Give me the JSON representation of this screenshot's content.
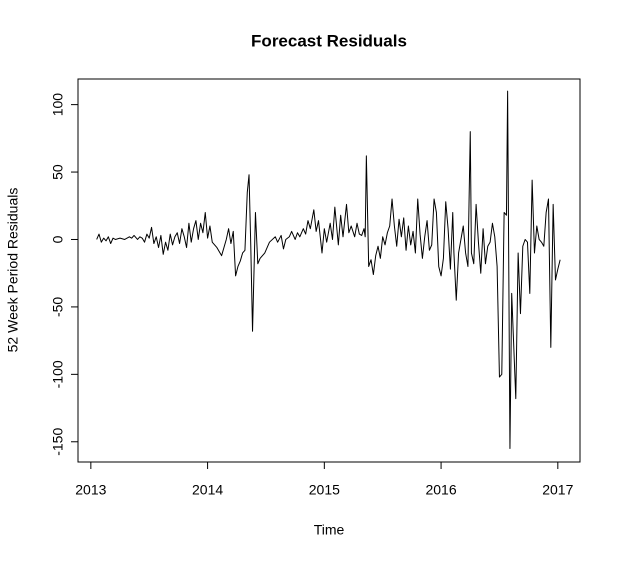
{
  "chart_data": {
    "type": "line",
    "title": "Forecast Residuals",
    "x_label": "Time",
    "y_label": "52 Week Period Residuals",
    "color": "#000000",
    "xlim": [
      2012.89,
      2017.19
    ],
    "xticks": [
      2013,
      2014,
      2015,
      2016,
      2017
    ],
    "ylim": [
      -165,
      119
    ],
    "yticks": [
      -150,
      -100,
      -50,
      0,
      50,
      100
    ],
    "x": [
      2013.05,
      2013.07,
      2013.09,
      2013.11,
      2013.13,
      2013.15,
      2013.17,
      2013.19,
      2013.21,
      2013.25,
      2013.29,
      2013.33,
      2013.35,
      2013.37,
      2013.4,
      2013.42,
      2013.44,
      2013.46,
      2013.48,
      2013.5,
      2013.52,
      2013.54,
      2013.56,
      2013.58,
      2013.6,
      2013.62,
      2013.64,
      2013.66,
      2013.68,
      2013.7,
      2013.72,
      2013.74,
      2013.76,
      2013.78,
      2013.8,
      2013.82,
      2013.84,
      2013.86,
      2013.88,
      2013.9,
      2013.92,
      2013.94,
      2013.96,
      2013.98,
      2014.0,
      2014.02,
      2014.04,
      2014.08,
      2014.12,
      2014.16,
      2014.18,
      2014.2,
      2014.22,
      2014.24,
      2014.26,
      2014.28,
      2014.3,
      2014.32,
      2014.34,
      2014.355,
      2014.37,
      2014.385,
      2014.41,
      2014.43,
      2014.45,
      2014.49,
      2014.53,
      2014.58,
      2014.6,
      2014.63,
      2014.65,
      2014.67,
      2014.7,
      2014.72,
      2014.75,
      2014.77,
      2014.79,
      2014.82,
      2014.84,
      2014.86,
      2014.88,
      2014.91,
      2014.93,
      2014.95,
      2014.98,
      2015.0,
      2015.02,
      2015.05,
      2015.07,
      2015.09,
      2015.12,
      2015.14,
      2015.16,
      2015.19,
      2015.21,
      2015.23,
      2015.26,
      2015.28,
      2015.3,
      2015.32,
      2015.34,
      2015.35,
      2015.36,
      2015.38,
      2015.4,
      2015.42,
      2015.44,
      2015.46,
      2015.48,
      2015.5,
      2015.52,
      2015.54,
      2015.56,
      2015.58,
      2015.6,
      2015.62,
      2015.64,
      2015.66,
      2015.68,
      2015.7,
      2015.72,
      2015.74,
      2015.76,
      2015.78,
      2015.8,
      2015.82,
      2015.84,
      2015.86,
      2015.88,
      2015.9,
      2015.92,
      2015.94,
      2015.96,
      2015.98,
      2016.0,
      2016.02,
      2016.04,
      2016.06,
      2016.08,
      2016.1,
      2016.11,
      2016.13,
      2016.15,
      2016.17,
      2016.19,
      2016.21,
      2016.23,
      2016.25,
      2016.26,
      2016.28,
      2016.3,
      2016.32,
      2016.34,
      2016.36,
      2016.38,
      2016.4,
      2016.42,
      2016.44,
      2016.46,
      2016.48,
      2016.5,
      2016.52,
      2016.54,
      2016.56,
      2016.57,
      2016.59,
      2016.605,
      2016.64,
      2016.66,
      2016.68,
      2016.7,
      2016.72,
      2016.74,
      2016.76,
      2016.78,
      2016.8,
      2016.82,
      2016.84,
      2016.86,
      2016.88,
      2016.9,
      2016.92,
      2016.94,
      2016.96,
      2016.98,
      2017.0,
      2017.02
    ],
    "values": [
      0,
      4,
      -2,
      1,
      -1,
      2,
      -3,
      1,
      0,
      1,
      0,
      2,
      1,
      3,
      0,
      2,
      1,
      -2,
      4,
      1,
      9,
      -3,
      2,
      -6,
      3,
      -11,
      -2,
      -8,
      4,
      -4,
      2,
      5,
      -3,
      8,
      2,
      -6,
      12,
      -2,
      8,
      14,
      0,
      12,
      5,
      20,
      1,
      10,
      -2,
      -6,
      -12,
      0,
      8,
      -3,
      6,
      -27,
      -20,
      -16,
      -10,
      -8,
      35,
      48,
      -5,
      -68,
      20,
      -18,
      -14,
      -10,
      -2,
      2,
      -2,
      3,
      -7,
      0,
      2,
      6,
      0,
      5,
      2,
      8,
      4,
      14,
      8,
      22,
      6,
      14,
      -10,
      8,
      -2,
      12,
      0,
      24,
      -4,
      18,
      2,
      26,
      5,
      10,
      2,
      12,
      4,
      3,
      8,
      2,
      62,
      -20,
      -15,
      -26,
      -12,
      -5,
      -14,
      2,
      -4,
      5,
      10,
      30,
      10,
      -5,
      15,
      2,
      16,
      -8,
      10,
      -4,
      6,
      -10,
      30,
      4,
      -14,
      2,
      14,
      -8,
      -4,
      30,
      20,
      -20,
      -27,
      -14,
      28,
      8,
      -22,
      20,
      -10,
      -45,
      -10,
      0,
      10,
      -10,
      -20,
      80,
      -10,
      -18,
      26,
      -2,
      -25,
      8,
      -18,
      -5,
      -2,
      12,
      2,
      -20,
      -102,
      -100,
      20,
      18,
      110,
      -155,
      -40,
      -118,
      -10,
      -55,
      -5,
      0,
      -2,
      -40,
      44,
      -10,
      10,
      0,
      -2,
      -5,
      20,
      30,
      -80,
      26,
      -30,
      -22,
      -15
    ]
  }
}
